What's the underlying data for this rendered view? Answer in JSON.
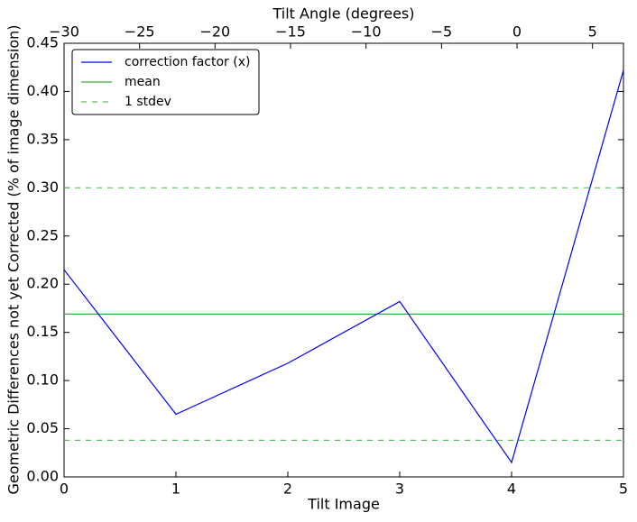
{
  "chart_data": {
    "type": "line",
    "xlabel": "Tilt Image",
    "ylabel": "Geometric Differences not yet Corrected (% of image dimension)",
    "x2label": "Tilt Angle (degrees)",
    "x": [
      0,
      1,
      2,
      3,
      4,
      5
    ],
    "xlim": [
      0,
      5
    ],
    "xticks": [
      0,
      1,
      2,
      3,
      4,
      5
    ],
    "x2lim": [
      -30,
      7.05
    ],
    "x2ticks": [
      {
        "value": -30,
        "label": "−30"
      },
      {
        "value": -25,
        "label": "−25"
      },
      {
        "value": -20,
        "label": "−20"
      },
      {
        "value": -15,
        "label": "−15"
      },
      {
        "value": -10,
        "label": "−10"
      },
      {
        "value": -5,
        "label": "−5"
      },
      0,
      5
    ],
    "ylim": [
      0,
      0.45
    ],
    "yticks": [
      {
        "value": 0,
        "label": "0.00"
      },
      {
        "value": 0.05,
        "label": "0.05"
      },
      {
        "value": 0.1,
        "label": "0.10"
      },
      {
        "value": 0.15,
        "label": "0.15"
      },
      {
        "value": 0.2,
        "label": "0.20"
      },
      {
        "value": 0.25,
        "label": "0.25"
      },
      {
        "value": 0.3,
        "label": "0.30"
      },
      {
        "value": 0.35,
        "label": "0.35"
      },
      {
        "value": 0.4,
        "label": "0.40"
      },
      {
        "value": 0.45,
        "label": "0.45"
      }
    ],
    "series": [
      {
        "name": "correction factor (x)",
        "color": "#0000ff",
        "values": [
          0.215,
          0.065,
          0.118,
          0.182,
          0.015,
          0.422
        ]
      }
    ],
    "hlines": [
      {
        "name": "mean",
        "color": "#3aaa3a",
        "dashed": false,
        "values": [
          0.169
        ]
      },
      {
        "name": "1 stdev",
        "color": "#5cbf5c",
        "dashed": true,
        "values": [
          0.038,
          0.3
        ]
      }
    ],
    "legend": "upper left"
  }
}
